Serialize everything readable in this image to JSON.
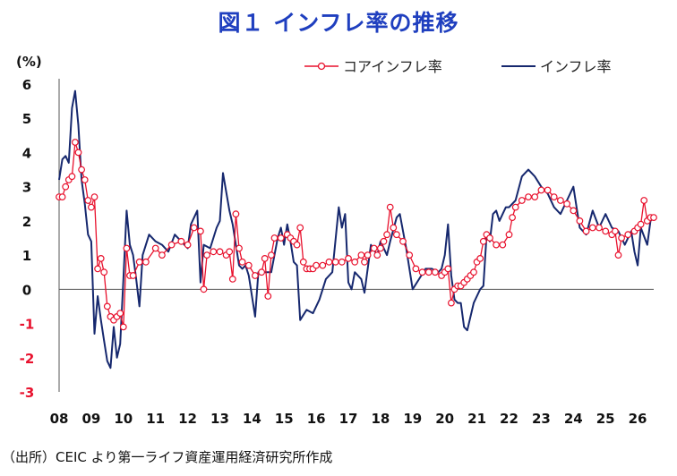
{
  "chart_data": {
    "type": "line",
    "title": "図１ インフレ率の推移",
    "ylabel": "(%)",
    "ylim": [
      -3,
      6
    ],
    "yticks": [
      "6",
      "5",
      "4",
      "3",
      "2",
      "1",
      "0",
      "-1",
      "-2",
      "-3"
    ],
    "xticks": [
      "08",
      "09",
      "10",
      "11",
      "12",
      "13",
      "14",
      "15",
      "16",
      "17",
      "18",
      "19",
      "20",
      "21",
      "22",
      "23",
      "24",
      "25",
      "26"
    ],
    "xrange": [
      2008,
      2026.5
    ],
    "legend_position": "top-right",
    "series": [
      {
        "name": "コアインフレ率",
        "color": "#e8112d",
        "marker": "circle-open",
        "points": [
          [
            2008.0,
            2.7
          ],
          [
            2008.1,
            2.7
          ],
          [
            2008.2,
            3.0
          ],
          [
            2008.3,
            3.2
          ],
          [
            2008.4,
            3.3
          ],
          [
            2008.5,
            4.3
          ],
          [
            2008.6,
            4.0
          ],
          [
            2008.7,
            3.5
          ],
          [
            2008.8,
            3.2
          ],
          [
            2008.9,
            2.6
          ],
          [
            2009.0,
            2.4
          ],
          [
            2009.1,
            2.7
          ],
          [
            2009.2,
            0.6
          ],
          [
            2009.3,
            0.9
          ],
          [
            2009.4,
            0.5
          ],
          [
            2009.5,
            -0.5
          ],
          [
            2009.6,
            -0.8
          ],
          [
            2009.7,
            -0.9
          ],
          [
            2009.8,
            -0.8
          ],
          [
            2009.9,
            -0.7
          ],
          [
            2010.0,
            -1.1
          ],
          [
            2010.1,
            1.2
          ],
          [
            2010.2,
            0.4
          ],
          [
            2010.3,
            0.4
          ],
          [
            2010.5,
            0.8
          ],
          [
            2010.7,
            0.8
          ],
          [
            2011.0,
            1.2
          ],
          [
            2011.2,
            1.0
          ],
          [
            2011.5,
            1.3
          ],
          [
            2011.8,
            1.4
          ],
          [
            2012.0,
            1.3
          ],
          [
            2012.2,
            1.8
          ],
          [
            2012.4,
            1.7
          ],
          [
            2012.5,
            0.0
          ],
          [
            2012.6,
            1.0
          ],
          [
            2012.8,
            1.1
          ],
          [
            2013.0,
            1.1
          ],
          [
            2013.2,
            1.0
          ],
          [
            2013.3,
            1.1
          ],
          [
            2013.4,
            0.3
          ],
          [
            2013.5,
            2.2
          ],
          [
            2013.6,
            1.2
          ],
          [
            2013.7,
            0.8
          ],
          [
            2013.9,
            0.7
          ],
          [
            2014.1,
            0.4
          ],
          [
            2014.3,
            0.5
          ],
          [
            2014.4,
            0.9
          ],
          [
            2014.5,
            -0.2
          ],
          [
            2014.6,
            1.0
          ],
          [
            2014.7,
            1.5
          ],
          [
            2014.9,
            1.5
          ],
          [
            2015.1,
            1.6
          ],
          [
            2015.2,
            1.5
          ],
          [
            2015.3,
            1.4
          ],
          [
            2015.4,
            1.3
          ],
          [
            2015.5,
            1.8
          ],
          [
            2015.6,
            0.8
          ],
          [
            2015.7,
            0.6
          ],
          [
            2015.8,
            0.6
          ],
          [
            2015.9,
            0.6
          ],
          [
            2016.0,
            0.7
          ],
          [
            2016.2,
            0.7
          ],
          [
            2016.4,
            0.8
          ],
          [
            2016.6,
            0.8
          ],
          [
            2016.8,
            0.8
          ],
          [
            2017.0,
            0.9
          ],
          [
            2017.2,
            0.8
          ],
          [
            2017.4,
            1.0
          ],
          [
            2017.5,
            0.8
          ],
          [
            2017.6,
            1.0
          ],
          [
            2017.8,
            1.2
          ],
          [
            2017.9,
            1.0
          ],
          [
            2018.0,
            1.2
          ],
          [
            2018.1,
            1.4
          ],
          [
            2018.2,
            1.6
          ],
          [
            2018.3,
            2.4
          ],
          [
            2018.4,
            1.8
          ],
          [
            2018.5,
            1.6
          ],
          [
            2018.7,
            1.4
          ],
          [
            2018.9,
            1.0
          ],
          [
            2019.1,
            0.6
          ],
          [
            2019.3,
            0.5
          ],
          [
            2019.5,
            0.5
          ],
          [
            2019.7,
            0.5
          ],
          [
            2019.9,
            0.4
          ],
          [
            2020.0,
            0.5
          ],
          [
            2020.1,
            0.6
          ],
          [
            2020.2,
            -0.4
          ],
          [
            2020.3,
            0.0
          ],
          [
            2020.4,
            0.1
          ],
          [
            2020.5,
            0.1
          ],
          [
            2020.6,
            0.2
          ],
          [
            2020.7,
            0.3
          ],
          [
            2020.8,
            0.4
          ],
          [
            2020.9,
            0.5
          ],
          [
            2021.0,
            0.8
          ],
          [
            2021.1,
            0.9
          ],
          [
            2021.2,
            1.4
          ],
          [
            2021.3,
            1.6
          ],
          [
            2021.4,
            1.5
          ],
          [
            2021.6,
            1.3
          ],
          [
            2021.8,
            1.3
          ],
          [
            2022.0,
            1.6
          ],
          [
            2022.1,
            2.1
          ],
          [
            2022.2,
            2.4
          ],
          [
            2022.4,
            2.6
          ],
          [
            2022.6,
            2.7
          ],
          [
            2022.8,
            2.7
          ],
          [
            2023.0,
            2.9
          ],
          [
            2023.2,
            2.9
          ],
          [
            2023.4,
            2.7
          ],
          [
            2023.6,
            2.6
          ],
          [
            2023.8,
            2.5
          ],
          [
            2024.0,
            2.3
          ],
          [
            2024.2,
            2.0
          ],
          [
            2024.4,
            1.7
          ],
          [
            2024.6,
            1.8
          ],
          [
            2024.8,
            1.8
          ],
          [
            2025.0,
            1.7
          ],
          [
            2025.2,
            1.6
          ],
          [
            2025.3,
            1.7
          ],
          [
            2025.4,
            1.0
          ],
          [
            2025.5,
            1.5
          ],
          [
            2025.7,
            1.6
          ],
          [
            2025.9,
            1.7
          ],
          [
            2026.0,
            1.8
          ],
          [
            2026.1,
            1.9
          ],
          [
            2026.2,
            2.6
          ],
          [
            2026.3,
            2.0
          ],
          [
            2026.4,
            2.1
          ],
          [
            2026.5,
            2.1
          ]
        ]
      },
      {
        "name": "インフレ率",
        "color": "#16286e",
        "marker": "none",
        "points": [
          [
            2008.0,
            3.2
          ],
          [
            2008.1,
            3.8
          ],
          [
            2008.2,
            3.9
          ],
          [
            2008.3,
            3.7
          ],
          [
            2008.4,
            5.3
          ],
          [
            2008.5,
            5.8
          ],
          [
            2008.6,
            4.8
          ],
          [
            2008.7,
            3.2
          ],
          [
            2008.8,
            2.5
          ],
          [
            2008.9,
            1.6
          ],
          [
            2009.0,
            1.4
          ],
          [
            2009.1,
            -1.3
          ],
          [
            2009.2,
            -0.2
          ],
          [
            2009.3,
            -0.9
          ],
          [
            2009.4,
            -1.5
          ],
          [
            2009.5,
            -2.1
          ],
          [
            2009.6,
            -2.3
          ],
          [
            2009.7,
            -1.1
          ],
          [
            2009.8,
            -2.0
          ],
          [
            2009.9,
            -1.6
          ],
          [
            2010.0,
            0.3
          ],
          [
            2010.1,
            2.3
          ],
          [
            2010.2,
            1.3
          ],
          [
            2010.3,
            1.0
          ],
          [
            2010.4,
            0.3
          ],
          [
            2010.5,
            -0.5
          ],
          [
            2010.6,
            1.0
          ],
          [
            2010.8,
            1.6
          ],
          [
            2011.0,
            1.4
          ],
          [
            2011.2,
            1.3
          ],
          [
            2011.4,
            1.1
          ],
          [
            2011.6,
            1.6
          ],
          [
            2011.8,
            1.4
          ],
          [
            2012.0,
            1.2
          ],
          [
            2012.1,
            1.9
          ],
          [
            2012.3,
            2.3
          ],
          [
            2012.4,
            0.2
          ],
          [
            2012.5,
            1.3
          ],
          [
            2012.7,
            1.2
          ],
          [
            2012.9,
            1.8
          ],
          [
            2013.0,
            2.0
          ],
          [
            2013.1,
            3.4
          ],
          [
            2013.3,
            2.3
          ],
          [
            2013.4,
            1.9
          ],
          [
            2013.5,
            1.3
          ],
          [
            2013.6,
            0.7
          ],
          [
            2013.7,
            0.6
          ],
          [
            2013.8,
            0.7
          ],
          [
            2013.9,
            0.4
          ],
          [
            2014.1,
            -0.8
          ],
          [
            2014.2,
            0.5
          ],
          [
            2014.4,
            0.5
          ],
          [
            2014.6,
            0.5
          ],
          [
            2014.8,
            1.5
          ],
          [
            2014.9,
            1.8
          ],
          [
            2015.0,
            1.3
          ],
          [
            2015.1,
            1.9
          ],
          [
            2015.2,
            1.4
          ],
          [
            2015.3,
            0.8
          ],
          [
            2015.4,
            0.7
          ],
          [
            2015.5,
            -0.9
          ],
          [
            2015.7,
            -0.6
          ],
          [
            2015.9,
            -0.7
          ],
          [
            2016.1,
            -0.3
          ],
          [
            2016.3,
            0.3
          ],
          [
            2016.5,
            0.5
          ],
          [
            2016.7,
            2.4
          ],
          [
            2016.8,
            1.8
          ],
          [
            2016.9,
            2.2
          ],
          [
            2017.0,
            0.2
          ],
          [
            2017.1,
            0.0
          ],
          [
            2017.2,
            0.5
          ],
          [
            2017.4,
            0.3
          ],
          [
            2017.5,
            -0.1
          ],
          [
            2017.7,
            1.3
          ],
          [
            2017.9,
            1.0
          ],
          [
            2018.0,
            1.4
          ],
          [
            2018.2,
            1.0
          ],
          [
            2018.3,
            1.4
          ],
          [
            2018.5,
            2.1
          ],
          [
            2018.6,
            2.2
          ],
          [
            2018.8,
            1.2
          ],
          [
            2018.9,
            0.6
          ],
          [
            2019.0,
            0.0
          ],
          [
            2019.2,
            0.3
          ],
          [
            2019.4,
            0.6
          ],
          [
            2019.6,
            0.6
          ],
          [
            2019.8,
            0.5
          ],
          [
            2019.9,
            0.6
          ],
          [
            2020.0,
            1.0
          ],
          [
            2020.1,
            1.9
          ],
          [
            2020.2,
            0.4
          ],
          [
            2020.3,
            -0.3
          ],
          [
            2020.4,
            -0.4
          ],
          [
            2020.5,
            -0.4
          ],
          [
            2020.6,
            -1.1
          ],
          [
            2020.7,
            -1.2
          ],
          [
            2020.9,
            -0.4
          ],
          [
            2021.1,
            0.0
          ],
          [
            2021.2,
            0.1
          ],
          [
            2021.3,
            1.6
          ],
          [
            2021.4,
            1.4
          ],
          [
            2021.5,
            2.2
          ],
          [
            2021.6,
            2.3
          ],
          [
            2021.7,
            2.0
          ],
          [
            2021.8,
            2.2
          ],
          [
            2021.9,
            2.4
          ],
          [
            2022.0,
            2.4
          ],
          [
            2022.2,
            2.6
          ],
          [
            2022.4,
            3.3
          ],
          [
            2022.6,
            3.5
          ],
          [
            2022.8,
            3.3
          ],
          [
            2023.0,
            3.0
          ],
          [
            2023.2,
            2.8
          ],
          [
            2023.4,
            2.4
          ],
          [
            2023.6,
            2.2
          ],
          [
            2023.8,
            2.6
          ],
          [
            2024.0,
            3.0
          ],
          [
            2024.2,
            1.8
          ],
          [
            2024.4,
            1.6
          ],
          [
            2024.6,
            2.3
          ],
          [
            2024.8,
            1.8
          ],
          [
            2025.0,
            2.2
          ],
          [
            2025.2,
            1.8
          ],
          [
            2025.4,
            1.7
          ],
          [
            2025.6,
            1.3
          ],
          [
            2025.8,
            1.7
          ],
          [
            2025.9,
            1.1
          ],
          [
            2026.0,
            0.7
          ],
          [
            2026.1,
            1.8
          ],
          [
            2026.3,
            1.3
          ],
          [
            2026.4,
            2.0
          ],
          [
            2026.5,
            2.1
          ]
        ]
      }
    ]
  },
  "source_note": "（出所）CEIC より第一ライフ資産運用経済研究所作成"
}
